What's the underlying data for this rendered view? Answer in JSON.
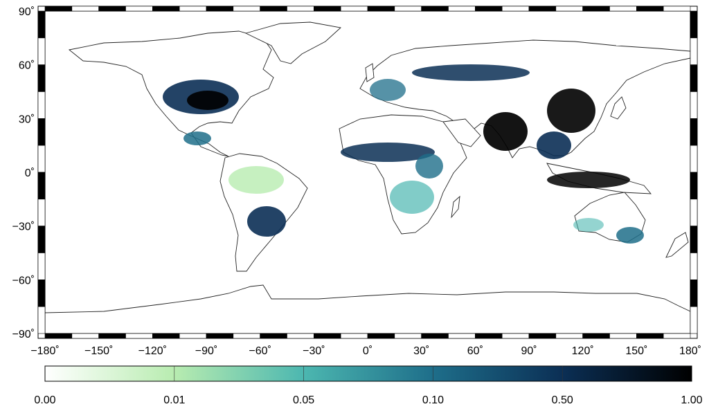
{
  "map": {
    "projection": "equirectangular",
    "lon_ticks": [
      "−180˚",
      "−150˚",
      "−120˚",
      "−90˚",
      "−60˚",
      "−30˚",
      "0˚",
      "30˚",
      "60˚",
      "90˚",
      "120˚",
      "150˚",
      "180˚"
    ],
    "lat_ticks": [
      "90˚",
      "60˚",
      "30˚",
      "0˚",
      "−30˚",
      "−60˚",
      "−90˚"
    ],
    "frame_style": "alternating black-white border",
    "coastline_color": "#222222",
    "land_background": "#ffffff",
    "ocean_background": "#ffffff"
  },
  "colorbar": {
    "tick_labels": [
      "0.00",
      "0.01",
      "0.05",
      "0.10",
      "0.50",
      "1.00"
    ],
    "colors": [
      "#ffffff",
      "#b8ecb0",
      "#4cb7b0",
      "#1e6e8a",
      "#0b2f55",
      "#000000"
    ]
  },
  "hotspots": [
    {
      "region": "Eastern USA",
      "level": "high"
    },
    {
      "region": "Central America",
      "level": "medium"
    },
    {
      "region": "Southern Brazil",
      "level": "high"
    },
    {
      "region": "Sahel",
      "level": "high"
    },
    {
      "region": "East Africa",
      "level": "medium"
    },
    {
      "region": "Southern Russia",
      "level": "high"
    },
    {
      "region": "India",
      "level": "very high"
    },
    {
      "region": "Eastern China",
      "level": "very high"
    },
    {
      "region": "Southeast Asia",
      "level": "very high"
    },
    {
      "region": "Southeast Australia",
      "level": "medium"
    }
  ]
}
